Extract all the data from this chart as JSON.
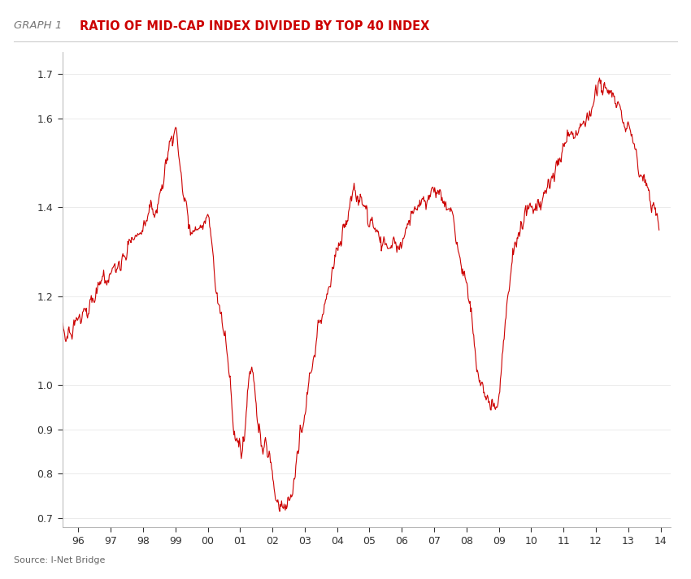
{
  "title_label": "GRAPH 1",
  "title_main": "RATIO OF MID-CAP INDEX DIVIDED BY TOP 40 INDEX",
  "source_text": "Source: I-Net Bridge",
  "line_color": "#cc0000",
  "background_color": "#ffffff",
  "ylim": [
    0.68,
    1.75
  ],
  "yticks": [
    0.7,
    0.8,
    0.9,
    1.0,
    1.2,
    1.4,
    1.6,
    1.7
  ],
  "x_start_year": 1995,
  "x_end_year": 2014,
  "xtick_labels": [
    "96",
    "97",
    "98",
    "99",
    "00",
    "01",
    "02",
    "03",
    "04",
    "05",
    "06",
    "07",
    "08",
    "09",
    "10",
    "11",
    "12",
    "13",
    "14"
  ],
  "xtick_years": [
    1996,
    1997,
    1998,
    1999,
    2000,
    2001,
    2002,
    2003,
    2004,
    2005,
    2006,
    2007,
    2008,
    2009,
    2010,
    2011,
    2012,
    2013,
    2014
  ]
}
